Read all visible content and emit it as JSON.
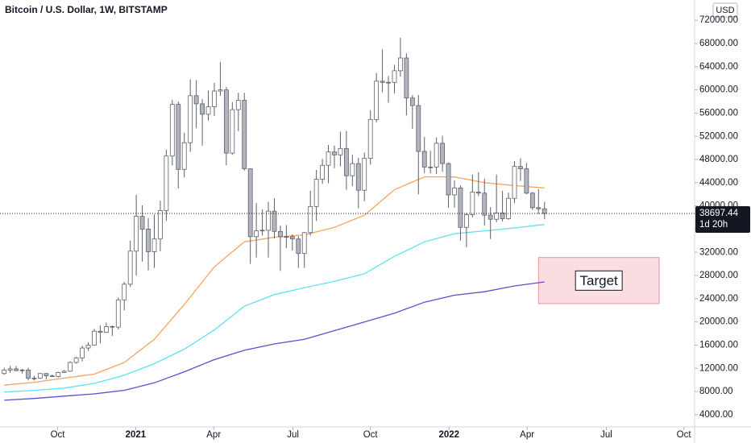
{
  "chart_data": {
    "type": "candlestick",
    "title": "Bitcoin / U.S. Dollar, 1W, BITSTAMP",
    "currency": "USD",
    "countdown": "1d 20h",
    "up_color": "#ffffff",
    "down_color": "#b2b5be",
    "outline_color": "#5d606b",
    "xlim": [
      -0.7,
      115
    ],
    "xticks": [
      {
        "value": 8.9,
        "label": "Oct"
      },
      {
        "value": 21.9,
        "label": "2021"
      },
      {
        "value": 34.9,
        "label": "Apr"
      },
      {
        "value": 48.1,
        "label": "Jul"
      },
      {
        "value": 61,
        "label": "Oct"
      },
      {
        "value": 74.1,
        "label": "2022"
      },
      {
        "value": 87.1,
        "label": "Apr"
      },
      {
        "value": 100.3,
        "label": "Jul"
      },
      {
        "value": 113.2,
        "label": "Oct"
      }
    ],
    "ylim": [
      1900,
      75500
    ],
    "yticks": [
      {
        "value": 4000,
        "label": "4000.00"
      },
      {
        "value": 8000,
        "label": "8000.00"
      },
      {
        "value": 12000,
        "label": "12000.00"
      },
      {
        "value": 16000,
        "label": "16000.00"
      },
      {
        "value": 20000,
        "label": "20000.00"
      },
      {
        "value": 24000,
        "label": "24000.00"
      },
      {
        "value": 28000,
        "label": "28000.00"
      },
      {
        "value": 32000,
        "label": "32000.00"
      },
      {
        "value": 36000,
        "label": "36000.00"
      },
      {
        "value": 40000,
        "label": "40000.00"
      },
      {
        "value": 44000,
        "label": "44000.00"
      },
      {
        "value": 48000,
        "label": "48000.00"
      },
      {
        "value": 52000,
        "label": "52000.00"
      },
      {
        "value": 56000,
        "label": "56000.00"
      },
      {
        "value": 60000,
        "label": "60000.00"
      },
      {
        "value": 64000,
        "label": "64000.00"
      },
      {
        "value": 68000,
        "label": "68000.00"
      },
      {
        "value": 72000,
        "label": "72000.00"
      }
    ],
    "candles": {
      "open": [
        11100,
        11700,
        11900,
        11600,
        11700,
        10300,
        10300,
        11100,
        10700,
        10600,
        11300,
        11500,
        13000,
        13800,
        15500,
        16000,
        18400,
        18200,
        19200,
        19100,
        23800,
        26500,
        32200,
        38200,
        36000,
        32100,
        34300,
        39200,
        48600,
        57500,
        46300,
        50900,
        59000,
        57600,
        55800,
        57100,
        59800,
        60000,
        49100,
        56600,
        58200,
        46400,
        34700,
        35700,
        35800,
        39100,
        35600,
        34700,
        34700,
        34300,
        31800,
        35400,
        39900,
        44600,
        47000,
        49300,
        48800,
        49900,
        45200,
        47300,
        42700,
        48200,
        54900,
        61500,
        61300,
        61300,
        63300,
        65500,
        58600,
        57300,
        49400,
        46700,
        46700,
        50800,
        47300,
        41900,
        43100,
        36300,
        38500,
        42400,
        42200,
        38400,
        37700,
        38800,
        37800,
        41300,
        46800,
        46400,
        42200,
        39700,
        39500
      ],
      "high": [
        12100,
        12400,
        12400,
        11900,
        12100,
        10700,
        11200,
        11200,
        10900,
        11400,
        11700,
        13200,
        14000,
        15900,
        16500,
        18800,
        19400,
        19900,
        19400,
        24200,
        26900,
        34000,
        41900,
        40100,
        37900,
        38500,
        40900,
        49700,
        58300,
        58000,
        52600,
        61800,
        61700,
        58400,
        59900,
        61200,
        64800,
        60500,
        57900,
        59500,
        59500,
        45800,
        40500,
        39400,
        40700,
        41300,
        36600,
        36700,
        35100,
        34800,
        35500,
        42600,
        46200,
        48100,
        50500,
        50400,
        52800,
        52900,
        48800,
        48300,
        49200,
        56500,
        62900,
        67000,
        62400,
        64300,
        69000,
        66300,
        59100,
        59100,
        51900,
        49500,
        51800,
        52100,
        47500,
        44400,
        43500,
        38800,
        45400,
        45800,
        44700,
        39800,
        45400,
        42600,
        42300,
        47700,
        48200,
        47400,
        42400,
        42900,
        40700
      ],
      "low": [
        10900,
        11200,
        11500,
        11100,
        9900,
        9900,
        10200,
        10100,
        10500,
        10400,
        11200,
        11400,
        12800,
        13200,
        15000,
        15900,
        16300,
        18100,
        17600,
        18700,
        22000,
        26000,
        28000,
        30400,
        28900,
        29300,
        32200,
        37400,
        47000,
        43000,
        44900,
        49300,
        53400,
        50400,
        54700,
        55500,
        59000,
        47000,
        48800,
        52900,
        46100,
        30000,
        31100,
        34900,
        31100,
        34400,
        28800,
        32700,
        32300,
        29300,
        29300,
        34900,
        37400,
        43800,
        43900,
        46500,
        46800,
        42800,
        43400,
        39600,
        40800,
        47100,
        54400,
        59600,
        57800,
        59400,
        62300,
        55600,
        53300,
        42000,
        45700,
        45600,
        45500,
        45900,
        39700,
        39700,
        34000,
        32900,
        38000,
        41700,
        36600,
        34300,
        37200,
        37300,
        37600,
        40500,
        44300,
        42000,
        39300,
        38600,
        37700
      ],
      "close": [
        11700,
        11900,
        11600,
        11700,
        10300,
        10300,
        11100,
        10700,
        10600,
        11300,
        11500,
        13000,
        13800,
        15500,
        16000,
        18400,
        18200,
        19200,
        19100,
        23800,
        26500,
        32200,
        38200,
        36000,
        32100,
        34300,
        39200,
        48600,
        57500,
        46300,
        50900,
        59000,
        57600,
        55800,
        57100,
        59800,
        60000,
        49100,
        56600,
        58200,
        46400,
        34700,
        35700,
        35800,
        39100,
        35600,
        34700,
        34700,
        34300,
        31800,
        35400,
        39900,
        44600,
        47000,
        49300,
        48800,
        49900,
        45200,
        47300,
        42700,
        48200,
        54900,
        61500,
        61300,
        61300,
        63300,
        65500,
        58600,
        57300,
        49400,
        46700,
        46700,
        50800,
        47300,
        41900,
        43100,
        36300,
        38500,
        42400,
        42200,
        38400,
        37700,
        38800,
        37800,
        41300,
        46800,
        46400,
        42200,
        39700,
        39500,
        38697.44
      ]
    },
    "series": [
      {
        "color": "#f7a35c",
        "x": [
          0,
          5,
          10,
          15,
          20,
          25,
          30,
          35,
          40,
          45,
          50,
          55,
          60,
          65,
          70,
          75,
          80,
          85,
          90
        ],
        "values": [
          9100,
          9600,
          10300,
          11000,
          13000,
          17000,
          23000,
          29500,
          33800,
          34600,
          35000,
          36300,
          38400,
          42800,
          45000,
          45000,
          44000,
          43500,
          43100
        ]
      },
      {
        "color": "#5ce1f2",
        "x": [
          0,
          5,
          10,
          15,
          20,
          25,
          30,
          35,
          40,
          45,
          50,
          55,
          60,
          65,
          70,
          75,
          80,
          85,
          90
        ],
        "values": [
          7900,
          8200,
          8600,
          9400,
          10800,
          12800,
          15300,
          18600,
          22700,
          24700,
          25900,
          27000,
          28300,
          31300,
          33800,
          35200,
          35700,
          36200,
          36800
        ]
      },
      {
        "color": "#5b4fcf",
        "x": [
          0,
          5,
          10,
          15,
          20,
          25,
          30,
          35,
          40,
          45,
          50,
          55,
          60,
          65,
          70,
          75,
          80,
          85,
          90
        ],
        "values": [
          6500,
          6800,
          7200,
          7600,
          8200,
          9500,
          11400,
          13500,
          15100,
          16200,
          17000,
          18500,
          20000,
          21500,
          23400,
          24600,
          25200,
          26200,
          26900
        ]
      }
    ],
    "annotations": [
      {
        "text": "Target",
        "x": [
          89,
          109.1
        ],
        "y": [
          23150,
          31100
        ],
        "color": "#f7c6cc"
      }
    ]
  }
}
